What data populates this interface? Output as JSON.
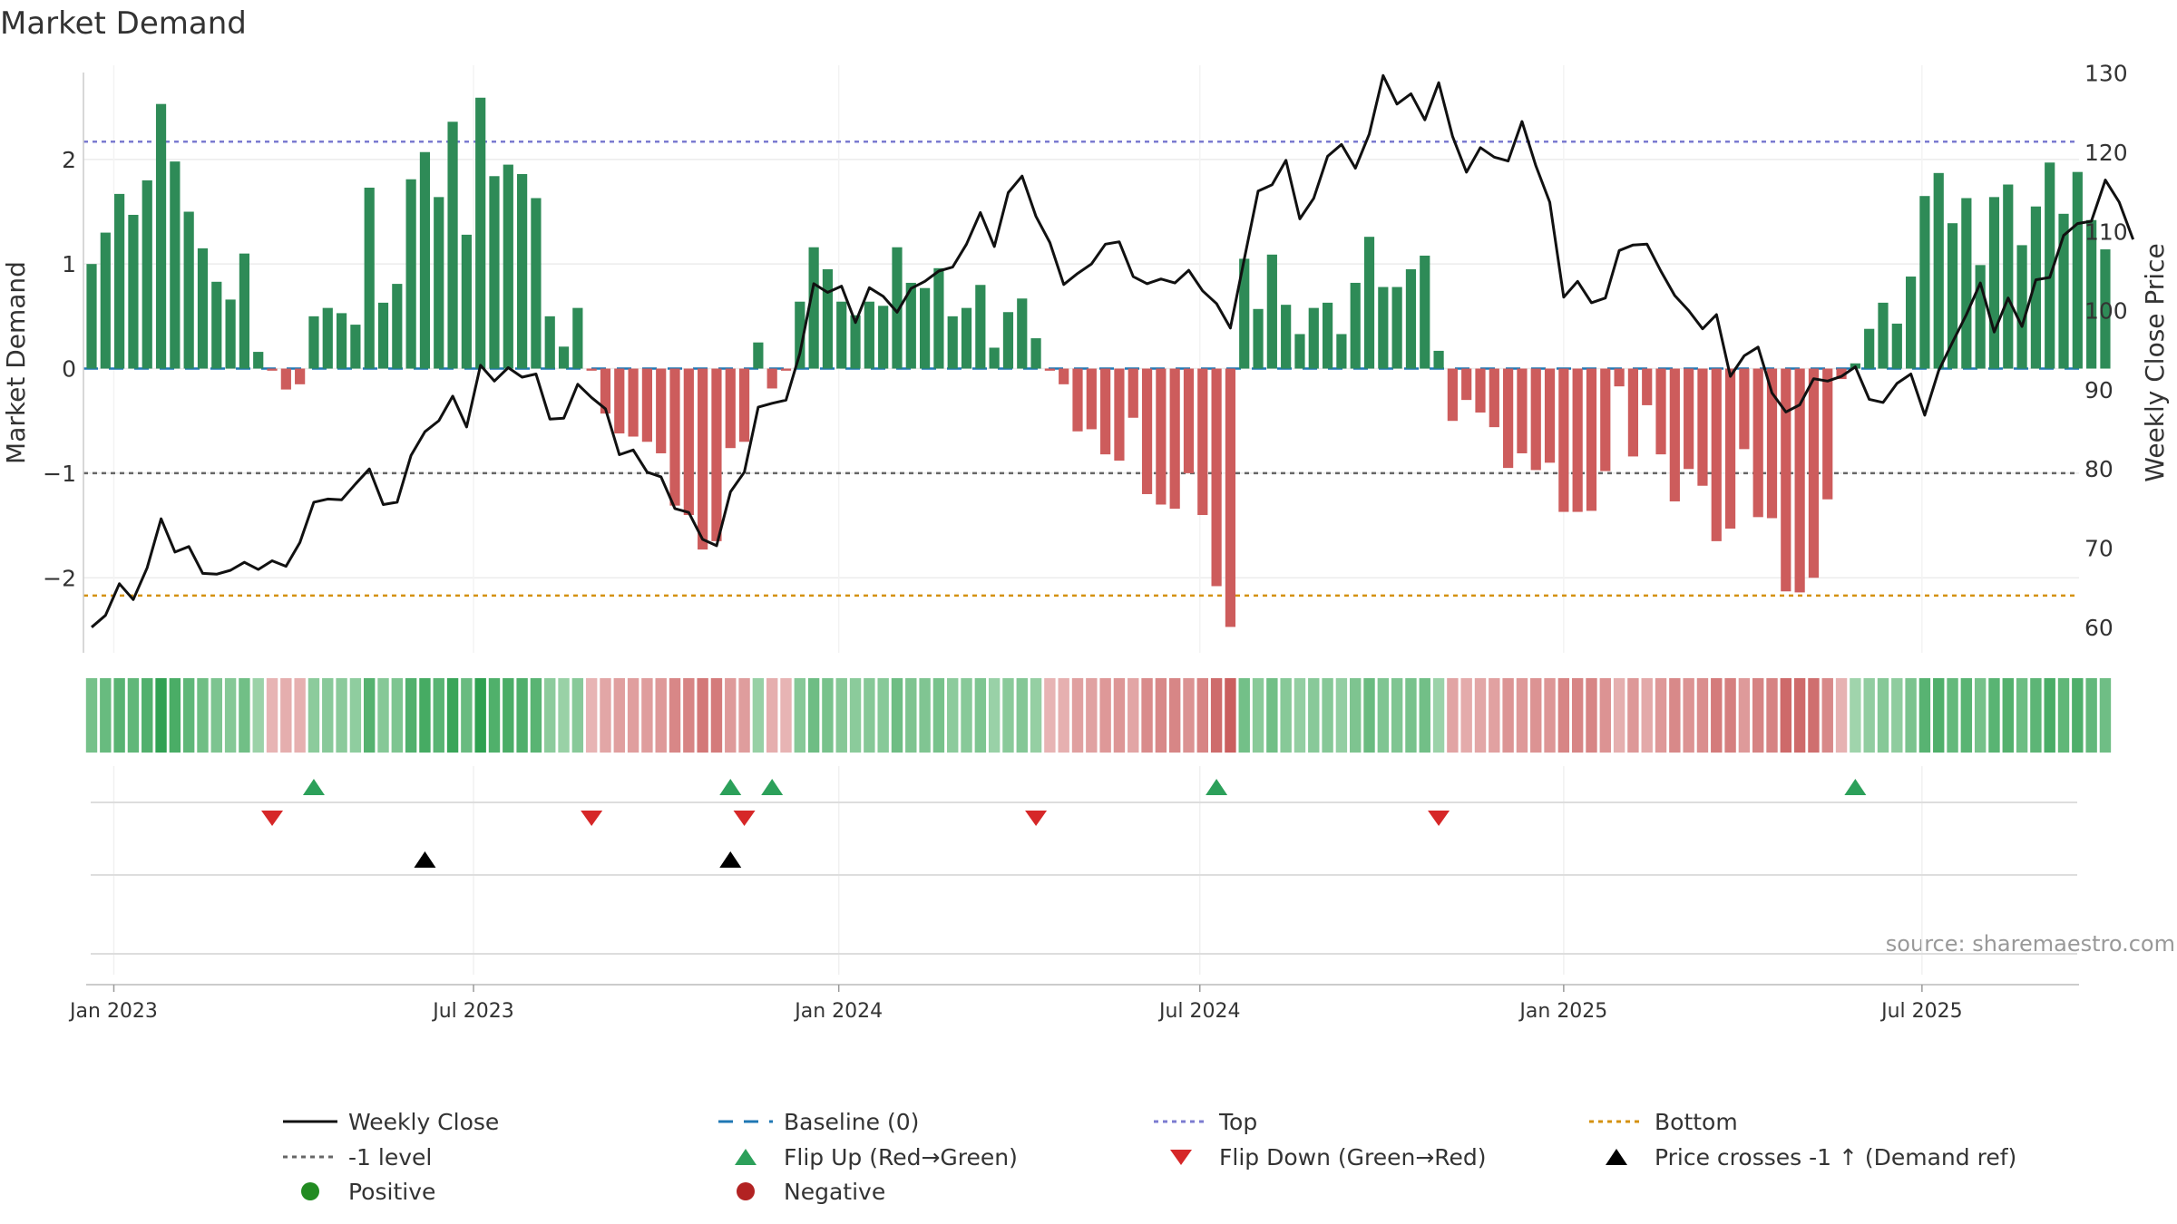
{
  "chart_data": {
    "type": "bar",
    "title": "Market Demand",
    "ylabel_left": "Market Demand",
    "ylabel_right": "Weekly Close Price",
    "source": "source: sharemaestro.com",
    "ylim_left": [
      -2.7,
      2.9
    ],
    "yticks_left": [
      {
        "v": 2,
        "label": "2"
      },
      {
        "v": 1,
        "label": "1"
      },
      {
        "v": 0,
        "label": "0"
      },
      {
        "v": -1,
        "label": "−1"
      },
      {
        "v": -2,
        "label": "−2"
      }
    ],
    "ylim_right": [
      57,
      131
    ],
    "yticks_right": [
      {
        "v": 130,
        "label": "130"
      },
      {
        "v": 120,
        "label": "120"
      },
      {
        "v": 110,
        "label": "110"
      },
      {
        "v": 100,
        "label": "100"
      },
      {
        "v": 90,
        "label": "90"
      },
      {
        "v": 80,
        "label": "80"
      },
      {
        "v": 70,
        "label": "70"
      },
      {
        "v": 60,
        "label": "60"
      }
    ],
    "x_ticks": [
      {
        "week": 1.6,
        "label": "Jan 2023"
      },
      {
        "week": 27.5,
        "label": "Jul 2023"
      },
      {
        "week": 53.8,
        "label": "Jan 2024"
      },
      {
        "week": 79.8,
        "label": "Jul 2024"
      },
      {
        "week": 106,
        "label": "Jan 2025"
      },
      {
        "week": 131.8,
        "label": "Jul 2025"
      }
    ],
    "weeks_start": "2022-12-25",
    "reference_lines": {
      "top": 2.17,
      "bottom": -2.17,
      "minus_one": -1.0,
      "baseline": 0
    },
    "demand": [
      1.0,
      1.3,
      1.67,
      1.47,
      1.8,
      2.53,
      1.98,
      1.5,
      1.15,
      0.83,
      0.66,
      1.1,
      0.16,
      -0.02,
      -0.2,
      -0.15,
      0.5,
      0.58,
      0.53,
      0.42,
      1.73,
      0.63,
      0.81,
      1.81,
      2.07,
      1.64,
      2.36,
      1.28,
      2.59,
      1.84,
      1.95,
      1.86,
      1.63,
      0.5,
      0.21,
      0.58,
      -0.02,
      -0.43,
      -0.62,
      -0.65,
      -0.7,
      -0.81,
      -1.31,
      -1.4,
      -1.73,
      -1.65,
      -0.76,
      -0.7,
      0.25,
      -0.19,
      -0.02,
      0.64,
      1.16,
      0.95,
      0.64,
      0.51,
      0.64,
      0.6,
      1.16,
      0.82,
      0.77,
      0.96,
      0.5,
      0.58,
      0.8,
      0.2,
      0.54,
      0.67,
      0.29,
      -0.02,
      -0.15,
      -0.6,
      -0.58,
      -0.82,
      -0.88,
      -0.47,
      -1.2,
      -1.3,
      -1.34,
      -1.0,
      -1.4,
      -2.08,
      -2.47,
      1.05,
      0.57,
      1.09,
      0.61,
      0.33,
      0.58,
      0.63,
      0.33,
      0.82,
      1.26,
      0.78,
      0.78,
      0.95,
      1.08,
      0.17,
      -0.5,
      -0.3,
      -0.42,
      -0.56,
      -0.95,
      -0.81,
      -0.97,
      -0.9,
      -1.37,
      -1.37,
      -1.36,
      -0.98,
      -0.17,
      -0.84,
      -0.35,
      -0.82,
      -1.27,
      -0.96,
      -1.12,
      -1.65,
      -1.53,
      -0.77,
      -1.42,
      -1.43,
      -2.13,
      -2.14,
      -2.0,
      -1.25,
      -0.1,
      0.05,
      0.38,
      0.63,
      0.43,
      0.88,
      1.65,
      1.87,
      1.39,
      1.63,
      0.99,
      1.64,
      1.76,
      1.18,
      1.55,
      1.97,
      1.48,
      1.88,
      1.42,
      1.14
    ],
    "weekly_close": [
      60.0,
      61.5,
      65.5,
      63.5,
      67.5,
      73.7,
      69.5,
      70.2,
      66.8,
      66.7,
      67.2,
      68.2,
      67.3,
      68.4,
      67.7,
      70.7,
      75.8,
      76.2,
      76.1,
      78.1,
      80.0,
      75.5,
      75.8,
      81.7,
      84.7,
      86.1,
      89.2,
      85.3,
      93.1,
      91.1,
      92.8,
      91.6,
      92.0,
      86.3,
      86.4,
      90.7,
      89.0,
      87.6,
      81.8,
      82.4,
      79.6,
      79.0,
      75.0,
      74.5,
      71.1,
      70.3,
      77.1,
      79.6,
      87.8,
      88.3,
      88.7,
      94.6,
      103.4,
      102.3,
      103.1,
      98.5,
      102.9,
      101.8,
      99.8,
      102.8,
      103.7,
      105.0,
      105.5,
      108.4,
      112.4,
      108.1,
      114.9,
      117.0,
      111.9,
      108.6,
      103.3,
      104.7,
      105.9,
      108.4,
      108.7,
      104.3,
      103.4,
      104.0,
      103.5,
      105.1,
      102.5,
      100.9,
      97.8,
      106.5,
      115.1,
      115.9,
      119.0,
      111.6,
      114.2,
      119.5,
      121.0,
      118.0,
      122.3,
      129.7,
      126.1,
      127.4,
      124.1,
      128.8,
      122.0,
      117.5,
      120.6,
      119.4,
      118.9,
      123.9,
      118.3,
      113.7,
      101.7,
      103.7,
      101.0,
      101.6,
      107.6,
      108.3,
      108.4,
      105.0,
      101.9,
      100.0,
      97.7,
      99.5,
      91.7,
      94.3,
      95.4,
      89.6,
      87.2,
      88.1,
      91.4,
      91.1,
      91.7,
      92.9,
      88.8,
      88.4,
      90.8,
      92.0,
      86.8,
      92.4,
      96.0,
      99.5,
      103.5,
      97.3,
      101.6,
      98.0,
      103.9,
      104.2,
      109.5,
      111.0,
      111.3,
      116.5,
      113.7,
      109.0
    ],
    "flip_up_weeks": [
      16,
      46,
      49,
      81,
      127
    ],
    "flip_down_weeks": [
      13,
      36,
      47,
      68,
      97
    ],
    "price_cross_weeks": [
      24,
      46
    ],
    "legend": [
      {
        "key": "weekly-close",
        "label": "Weekly Close",
        "symbol": "solid-line",
        "color": "#111111"
      },
      {
        "key": "baseline",
        "label": "Baseline (0)",
        "symbol": "dashed-line",
        "color": "#1f77b4"
      },
      {
        "key": "top",
        "label": "Top",
        "symbol": "dotted-line",
        "color": "#7b7bd0"
      },
      {
        "key": "bottom",
        "label": "Bottom",
        "symbol": "dotted-line",
        "color": "#d4910f"
      },
      {
        "key": "minus-one",
        "label": "-1 level",
        "symbol": "dotted-line",
        "color": "#666666"
      },
      {
        "key": "flip-up",
        "label": "Flip Up (Red→Green)",
        "symbol": "triangle-up",
        "color": "#2ca05a"
      },
      {
        "key": "flip-down",
        "label": "Flip Down (Green→Red)",
        "symbol": "triangle-down",
        "color": "#d62728"
      },
      {
        "key": "price-cross",
        "label": "Price crosses -1 ↑ (Demand ref)",
        "symbol": "triangle-up",
        "color": "#000000"
      },
      {
        "key": "positive",
        "label": "Positive",
        "symbol": "circle",
        "color": "#228b22"
      },
      {
        "key": "negative",
        "label": "Negative",
        "symbol": "circle",
        "color": "#b22222"
      }
    ],
    "colors": {
      "positive_bar": "#2e8b57",
      "negative_bar": "#cd5c5c",
      "price_line": "#111111"
    }
  }
}
